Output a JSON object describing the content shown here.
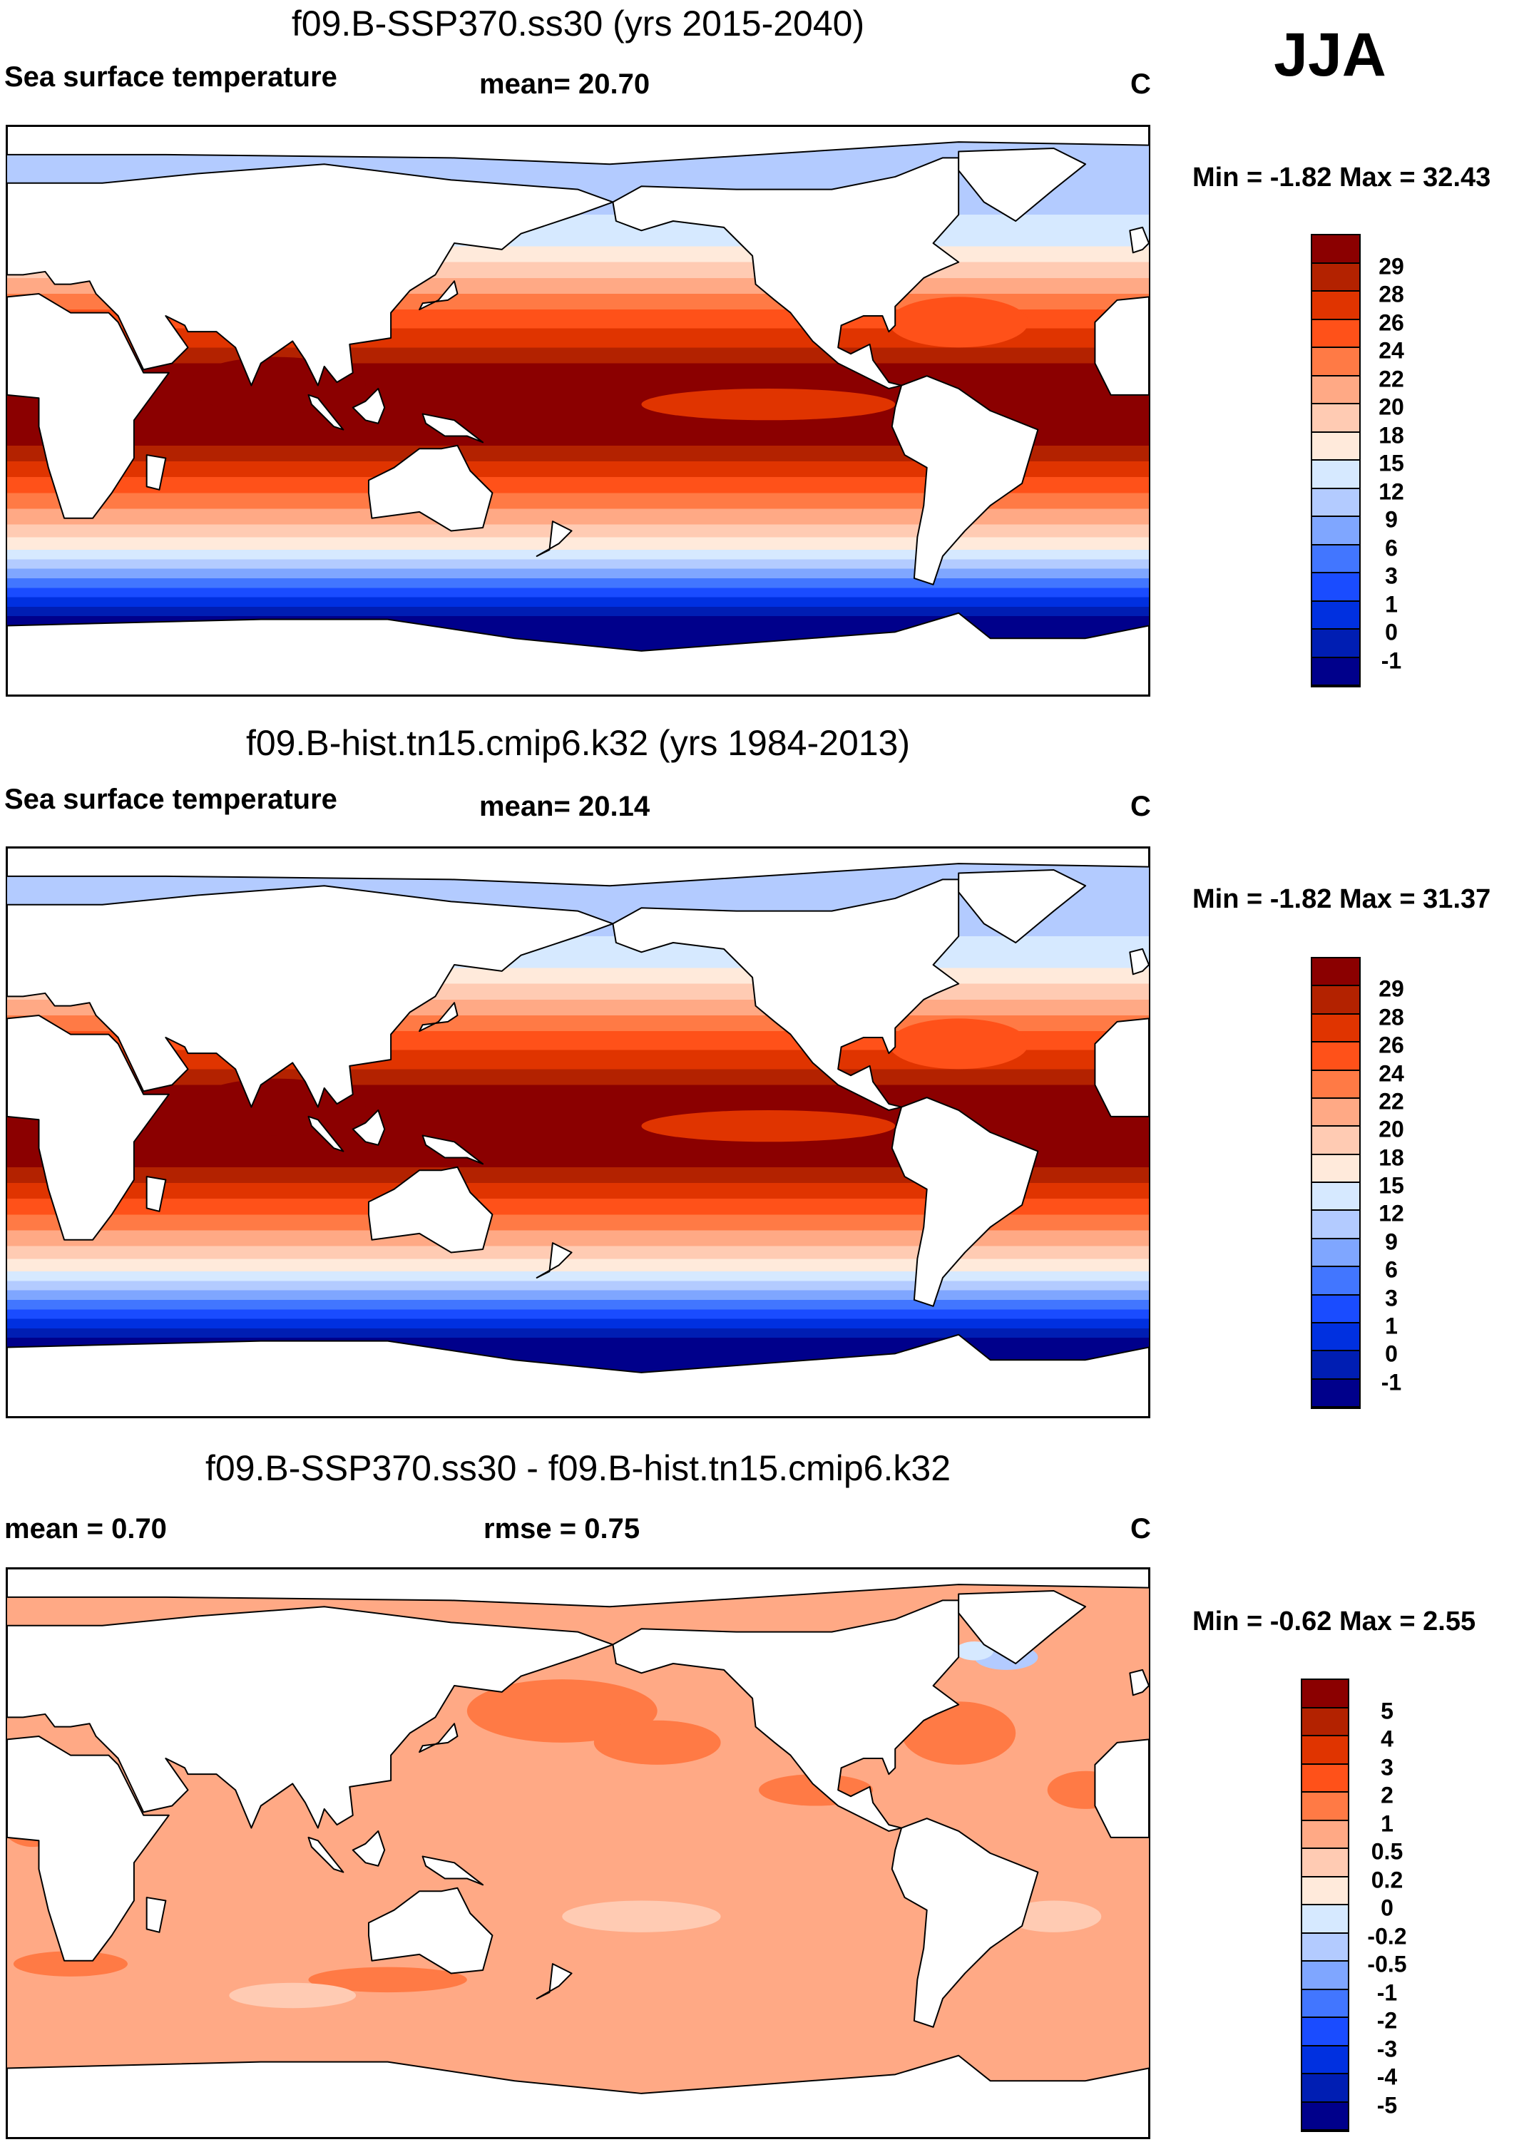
{
  "season": "JJA",
  "panels": [
    {
      "title": "f09.B-SSP370.ss30 (yrs 2015-2040)",
      "left_label": "Sea surface temperature",
      "center_label": "mean=  20.70",
      "units": "C",
      "min_label": "Min =",
      "min": "-1.82",
      "max_label": "Max =",
      "max": "32.43"
    },
    {
      "title": "f09.B-hist.tn15.cmip6.k32 (yrs 1984-2013)",
      "left_label": "Sea surface temperature",
      "center_label": "mean=  20.14",
      "units": "C",
      "min_label": "Min =",
      "min": "-1.82",
      "max_label": "Max =",
      "max": "31.37"
    },
    {
      "title": "f09.B-SSP370.ss30 - f09.B-hist.tn15.cmip6.k32",
      "left_label": "mean =   0.70",
      "center_label": "rmse =   0.75",
      "units": "C",
      "min_label": "Min =",
      "min": "-0.62",
      "max_label": "Max =",
      "max": "2.55"
    }
  ],
  "chart_data": [
    {
      "type": "heatmap",
      "title": "f09.B-SSP370.ss30 (yrs 2015-2040)",
      "variable": "Sea surface temperature",
      "mean": 20.7,
      "min": -1.82,
      "max": 32.43,
      "units": "C",
      "colorbar_levels": [
        "29",
        "28",
        "26",
        "24",
        "22",
        "20",
        "18",
        "15",
        "12",
        "9",
        "6",
        "3",
        "1",
        "0",
        "-1"
      ]
    },
    {
      "type": "heatmap",
      "title": "f09.B-hist.tn15.cmip6.k32 (yrs 1984-2013)",
      "variable": "Sea surface temperature",
      "mean": 20.14,
      "min": -1.82,
      "max": 31.37,
      "units": "C",
      "colorbar_levels": [
        "29",
        "28",
        "26",
        "24",
        "22",
        "20",
        "18",
        "15",
        "12",
        "9",
        "6",
        "3",
        "1",
        "0",
        "-1"
      ]
    },
    {
      "type": "heatmap",
      "title": "f09.B-SSP370.ss30 - f09.B-hist.tn15.cmip6.k32",
      "mean": 0.7,
      "rmse": 0.75,
      "min": -0.62,
      "max": 2.55,
      "units": "C",
      "colorbar_levels": [
        "5",
        "4",
        "3",
        "2",
        "1",
        "0.5",
        "0.2",
        "0",
        "-0.2",
        "-0.5",
        "-1",
        "-2",
        "-3",
        "-4",
        "-5"
      ]
    }
  ],
  "colors": [
    "#8b0000",
    "#b32200",
    "#e03400",
    "#ff5119",
    "#ff7a45",
    "#ffa985",
    "#ffcbb3",
    "#ffeadb",
    "#d6e9ff",
    "#b3cbff",
    "#7fa6ff",
    "#4276ff",
    "#1a4cff",
    "#0030e0",
    "#001eb3",
    "#00008b"
  ]
}
